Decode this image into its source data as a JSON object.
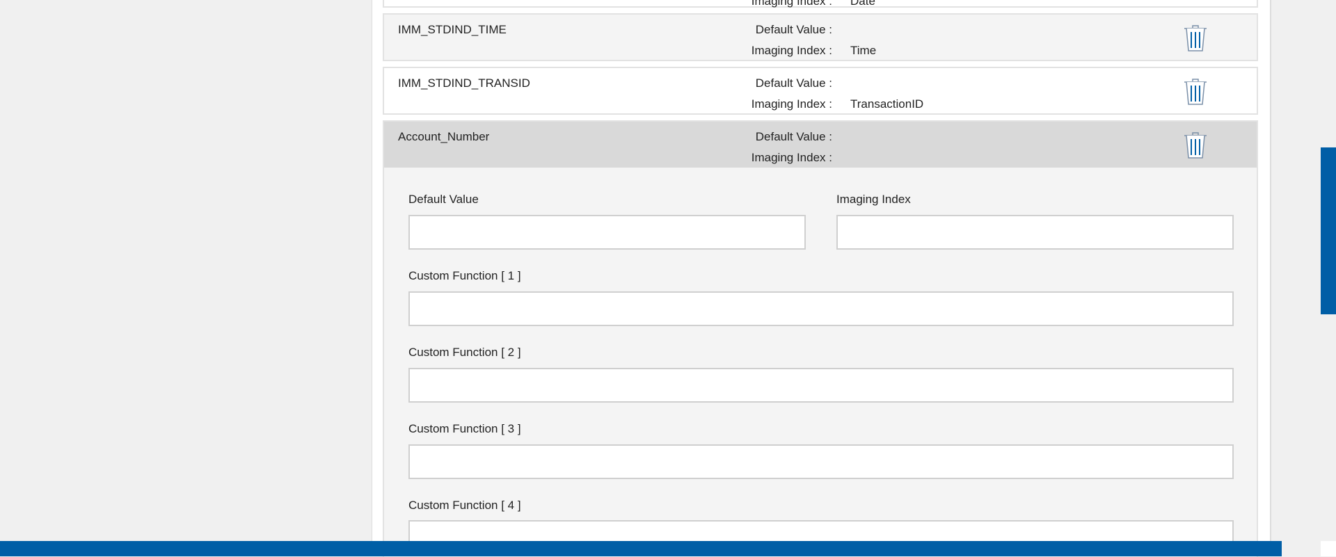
{
  "rows": [
    {
      "name": "",
      "default_label": "",
      "imaging_label": "Imaging Index :",
      "imaging_value": "Date"
    },
    {
      "name": "IMM_STDIND_TIME",
      "default_label": "Default Value :",
      "imaging_label": "Imaging Index :",
      "imaging_value": "Time"
    },
    {
      "name": "IMM_STDIND_TRANSID",
      "default_label": "Default Value :",
      "imaging_label": "Imaging Index :",
      "imaging_value": "TransactionID"
    },
    {
      "name": "Account_Number",
      "default_label": "Default Value :",
      "imaging_label": "Imaging Index :",
      "imaging_value": ""
    }
  ],
  "form": {
    "default_value_label": "Default Value",
    "default_value": "",
    "imaging_index_label": "Imaging Index",
    "imaging_index": "",
    "custom_functions": [
      {
        "label": "Custom Function [ 1 ]",
        "value": ""
      },
      {
        "label": "Custom Function [ 2 ]",
        "value": ""
      },
      {
        "label": "Custom Function [ 3 ]",
        "value": ""
      },
      {
        "label": "Custom Function [ 4 ]",
        "value": ""
      }
    ]
  },
  "colors": {
    "accent": "#005ea6",
    "selected_row": "#d9d9d9",
    "alt_row": "#f4f4f4"
  },
  "icons": {
    "delete": "trash-icon"
  }
}
